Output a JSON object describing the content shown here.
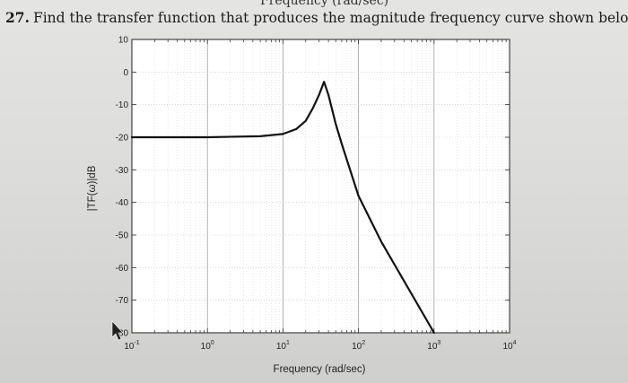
{
  "question": {
    "number": "27.",
    "text": "Find the transfer function that produces the magnitude frequency curve shown below."
  },
  "top_fragment": "Frequency (rad/sec)",
  "chart_data": {
    "type": "line",
    "title": "",
    "xlabel": "Frequency (rad/sec)",
    "ylabel": "|TF(ω)|dB",
    "xscale": "log",
    "xlim": [
      0.1,
      10000
    ],
    "ylim": [
      -80,
      10
    ],
    "x_ticks": [
      {
        "value": 0.1,
        "base": "10",
        "exp": "-1"
      },
      {
        "value": 1,
        "base": "10",
        "exp": "0"
      },
      {
        "value": 10,
        "base": "10",
        "exp": "1"
      },
      {
        "value": 100,
        "base": "10",
        "exp": "2"
      },
      {
        "value": 1000,
        "base": "10",
        "exp": "3"
      },
      {
        "value": 10000,
        "base": "10",
        "exp": "4"
      }
    ],
    "y_ticks": [
      10,
      0,
      -10,
      -20,
      -30,
      -40,
      -50,
      -60,
      -70,
      -80
    ],
    "y_tick_labels": [
      "10",
      "0",
      "-10",
      "-20",
      "-30",
      "-40",
      "-50",
      "-60",
      "-70",
      "-80"
    ],
    "grid": true,
    "series": [
      {
        "x": [
          0.1,
          1,
          5,
          10,
          15,
          20,
          25,
          30,
          35,
          40,
          50,
          60,
          80,
          100,
          200,
          1000
        ],
        "y": [
          -20,
          -20,
          -19.7,
          -19,
          -17.5,
          -15,
          -11,
          -7,
          -3,
          -7,
          -16,
          -22,
          -31,
          -38,
          -52,
          -80
        ]
      }
    ],
    "colors": {
      "line": "#111111",
      "grid": "#b8b8b8",
      "plot_bg": "#ffffff"
    }
  }
}
